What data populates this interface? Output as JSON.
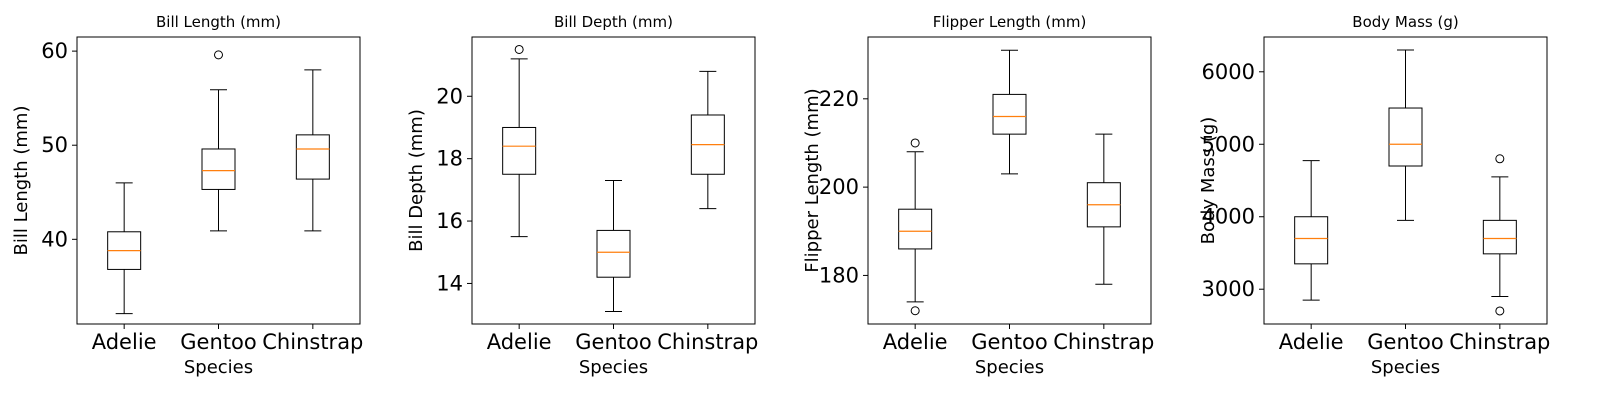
{
  "chart_data": [
    {
      "type": "box",
      "title": "Bill Length (mm)",
      "xlabel": "Species",
      "ylabel": "Bill Length (mm)",
      "ylim": [
        31,
        61.5
      ],
      "yticks": [
        40,
        50,
        60
      ],
      "categories": [
        "Adelie",
        "Gentoo",
        "Chinstrap"
      ],
      "boxes": [
        {
          "whisker_low": 32.1,
          "q1": 36.8,
          "median": 38.8,
          "q3": 40.8,
          "whisker_high": 46.0,
          "outliers": []
        },
        {
          "whisker_low": 40.9,
          "q1": 45.3,
          "median": 47.3,
          "q3": 49.6,
          "whisker_high": 55.9,
          "outliers": [
            59.6
          ]
        },
        {
          "whisker_low": 40.9,
          "q1": 46.4,
          "median": 49.6,
          "q3": 51.1,
          "whisker_high": 58.0,
          "outliers": []
        }
      ]
    },
    {
      "type": "box",
      "title": "Bill Depth (mm)",
      "xlabel": "Species",
      "ylabel": "Bill Depth (mm)",
      "ylim": [
        12.7,
        21.9
      ],
      "yticks": [
        14,
        16,
        18,
        20
      ],
      "categories": [
        "Adelie",
        "Gentoo",
        "Chinstrap"
      ],
      "boxes": [
        {
          "whisker_low": 15.5,
          "q1": 17.5,
          "median": 18.4,
          "q3": 19.0,
          "whisker_high": 21.2,
          "outliers": [
            21.5
          ]
        },
        {
          "whisker_low": 13.1,
          "q1": 14.2,
          "median": 15.0,
          "q3": 15.7,
          "whisker_high": 17.3,
          "outliers": []
        },
        {
          "whisker_low": 16.4,
          "q1": 17.5,
          "median": 18.45,
          "q3": 19.4,
          "whisker_high": 20.8,
          "outliers": []
        }
      ]
    },
    {
      "type": "box",
      "title": "Flipper Length (mm)",
      "xlabel": "Species",
      "ylabel": "Flipper Length (mm)",
      "ylim": [
        169,
        234
      ],
      "yticks": [
        180,
        200,
        220
      ],
      "categories": [
        "Adelie",
        "Gentoo",
        "Chinstrap"
      ],
      "boxes": [
        {
          "whisker_low": 174,
          "q1": 186,
          "median": 190,
          "q3": 195,
          "whisker_high": 208,
          "outliers": [
            172,
            210
          ]
        },
        {
          "whisker_low": 203,
          "q1": 212,
          "median": 216,
          "q3": 221,
          "whisker_high": 231,
          "outliers": []
        },
        {
          "whisker_low": 178,
          "q1": 191,
          "median": 196,
          "q3": 201,
          "whisker_high": 212,
          "outliers": []
        }
      ]
    },
    {
      "type": "box",
      "title": "Body Mass (g)",
      "xlabel": "Species",
      "ylabel": "Body Mass (g)",
      "ylim": [
        2520,
        6480
      ],
      "yticks": [
        3000,
        4000,
        5000,
        6000
      ],
      "categories": [
        "Adelie",
        "Gentoo",
        "Chinstrap"
      ],
      "boxes": [
        {
          "whisker_low": 2850,
          "q1": 3350,
          "median": 3700,
          "q3": 4000,
          "whisker_high": 4775,
          "outliers": []
        },
        {
          "whisker_low": 3950,
          "q1": 4700,
          "median": 5000,
          "q3": 5500,
          "whisker_high": 6300,
          "outliers": []
        },
        {
          "whisker_low": 2900,
          "q1": 3488,
          "median": 3700,
          "q3": 3950,
          "whisker_high": 4550,
          "outliers": [
            2700,
            4800
          ]
        }
      ]
    }
  ],
  "colors": {
    "box": "#000000",
    "median": "#ff7f0e",
    "background": "#ffffff"
  }
}
